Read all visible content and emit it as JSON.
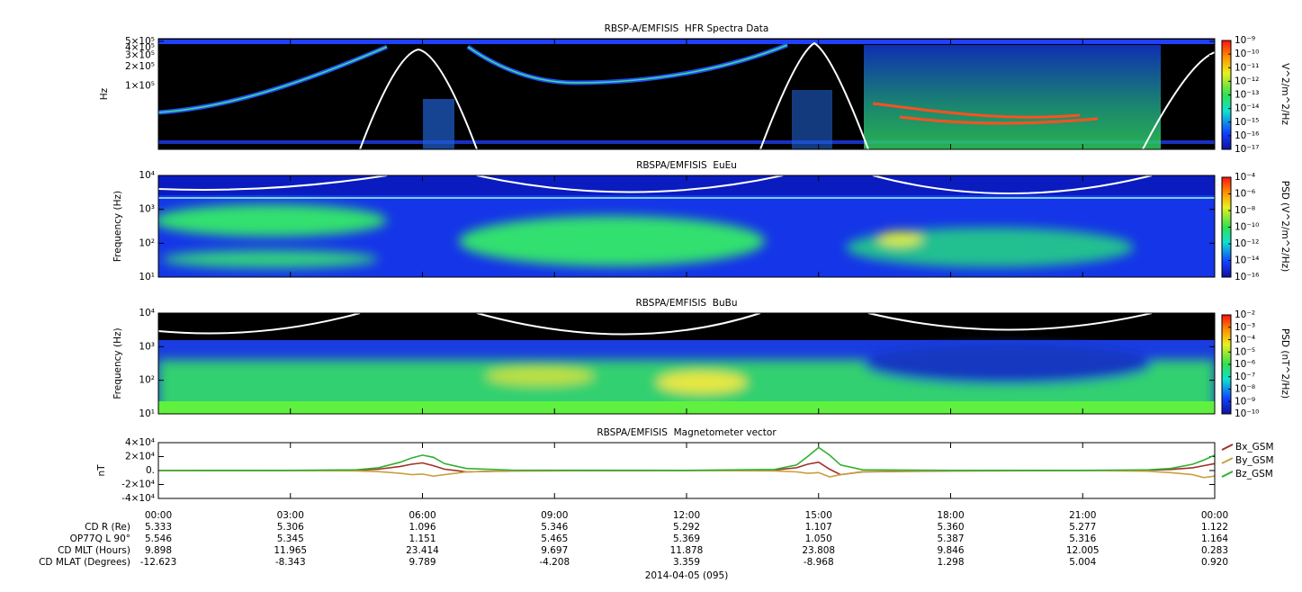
{
  "chart_data": [
    {
      "type": "spectrogram",
      "title": "RBSP-A/EMFISIS  HFR Spectra Data",
      "ylabel": "Hz",
      "ylog": true,
      "ylim": [
        10000,
        550000
      ],
      "yticks": [
        {
          "value": 500000,
          "label": "5×10⁵"
        },
        {
          "value": 400000,
          "label": "4×10⁵"
        },
        {
          "value": 300000,
          "label": "3×10⁵"
        },
        {
          "value": 200000,
          "label": "2×10⁵"
        },
        {
          "value": 100000,
          "label": "1×10⁵"
        }
      ],
      "colorbar_label": "V^2/m^2/Hz",
      "clim": [
        1e-17,
        1e-09
      ],
      "cticks": [
        {
          "value": 1e-09,
          "label": "10⁻⁹"
        },
        {
          "value": 1e-10,
          "label": "10⁻¹⁰"
        },
        {
          "value": 1e-11,
          "label": "10⁻¹¹"
        },
        {
          "value": 1e-12,
          "label": "10⁻¹²"
        },
        {
          "value": 1e-13,
          "label": "10⁻¹³"
        },
        {
          "value": 1e-14,
          "label": "10⁻¹⁴"
        },
        {
          "value": 1e-15,
          "label": "10⁻¹⁵"
        },
        {
          "value": 1e-16,
          "label": "10⁻¹⁶"
        },
        {
          "value": 1e-17,
          "label": "10⁻¹⁷"
        }
      ]
    },
    {
      "type": "spectrogram",
      "title": "RBSPA/EMFISIS  EuEu",
      "ylabel": "Frequency (Hz)",
      "ylog": true,
      "ylim": [
        10,
        10000
      ],
      "yticks": [
        {
          "value": 10000,
          "label": "10⁴"
        },
        {
          "value": 1000,
          "label": "10³"
        },
        {
          "value": 100,
          "label": "10²"
        },
        {
          "value": 10,
          "label": "10¹"
        }
      ],
      "colorbar_label": "PSD (V^2/m^2/Hz)",
      "clim": [
        1e-16,
        0.0001
      ],
      "cticks": [
        {
          "value": 0.0001,
          "label": "10⁻⁴"
        },
        {
          "value": 1e-06,
          "label": "10⁻⁶"
        },
        {
          "value": 1e-08,
          "label": "10⁻⁸"
        },
        {
          "value": 1e-10,
          "label": "10⁻¹⁰"
        },
        {
          "value": 1e-12,
          "label": "10⁻¹²"
        },
        {
          "value": 1e-14,
          "label": "10⁻¹⁴"
        },
        {
          "value": 1e-16,
          "label": "10⁻¹⁶"
        }
      ]
    },
    {
      "type": "spectrogram",
      "title": "RBSPA/EMFISIS  BuBu",
      "ylabel": "Frequency (Hz)",
      "ylog": true,
      "ylim": [
        10,
        10000
      ],
      "yticks": [
        {
          "value": 10000,
          "label": "10⁴"
        },
        {
          "value": 1000,
          "label": "10³"
        },
        {
          "value": 100,
          "label": "10²"
        },
        {
          "value": 10,
          "label": "10¹"
        }
      ],
      "colorbar_label": "PSD (nT^2/Hz)",
      "clim": [
        1e-10,
        0.01
      ],
      "cticks": [
        {
          "value": 0.01,
          "label": "10⁻²"
        },
        {
          "value": 0.001,
          "label": "10⁻³"
        },
        {
          "value": 0.0001,
          "label": "10⁻⁴"
        },
        {
          "value": 1e-05,
          "label": "10⁻⁵"
        },
        {
          "value": 1e-06,
          "label": "10⁻⁶"
        },
        {
          "value": 1e-07,
          "label": "10⁻⁷"
        },
        {
          "value": 1e-08,
          "label": "10⁻⁸"
        },
        {
          "value": 1e-09,
          "label": "10⁻⁹"
        },
        {
          "value": 1e-10,
          "label": "10⁻¹⁰"
        }
      ]
    },
    {
      "type": "line",
      "title": "RBSPA/EMFISIS  Magnetometer vector",
      "ylabel": "nT",
      "ylim": [
        -40000,
        40000
      ],
      "yticks": [
        {
          "value": 40000,
          "label": "4×10⁴"
        },
        {
          "value": 20000,
          "label": "2×10⁴"
        },
        {
          "value": 0,
          "label": "0."
        },
        {
          "value": -20000,
          "label": "-2×10⁴"
        },
        {
          "value": -40000,
          "label": "-4×10⁴"
        }
      ],
      "legend": "right",
      "xlim": [
        0,
        24
      ],
      "xticks": [
        {
          "value": 0,
          "label": "00:00"
        },
        {
          "value": 3,
          "label": "03:00"
        },
        {
          "value": 6,
          "label": "06:00"
        },
        {
          "value": 9,
          "label": "09:00"
        },
        {
          "value": 12,
          "label": "12:00"
        },
        {
          "value": 15,
          "label": "15:00"
        },
        {
          "value": 18,
          "label": "18:00"
        },
        {
          "value": 21,
          "label": "21:00"
        },
        {
          "value": 24,
          "label": "00:00"
        }
      ],
      "x": [
        0,
        3,
        4.5,
        5,
        5.5,
        5.75,
        6,
        6.25,
        6.5,
        7,
        8,
        12,
        14,
        14.5,
        14.75,
        15,
        15.25,
        15.5,
        16,
        18,
        21,
        22.5,
        23,
        23.5,
        23.75,
        24
      ],
      "series": [
        {
          "name": "Bx_GSM",
          "color": "#a03028",
          "values": [
            0,
            100,
            500,
            2000,
            6000,
            9000,
            11000,
            7000,
            2000,
            -2000,
            -500,
            100,
            800,
            4000,
            9000,
            12000,
            2000,
            -6000,
            -2000,
            -500,
            0,
            500,
            1500,
            4000,
            7000,
            10000
          ]
        },
        {
          "name": "By_GSM",
          "color": "#c8a040",
          "values": [
            0,
            -100,
            -500,
            -1500,
            -4000,
            -6000,
            -5000,
            -8000,
            -6000,
            -2000,
            -300,
            0,
            -500,
            -2000,
            -4000,
            -3000,
            -9000,
            -6000,
            -1500,
            -300,
            0,
            -1000,
            -3000,
            -6000,
            -10000,
            -8000
          ]
        },
        {
          "name": "Bz_GSM",
          "color": "#30b030",
          "values": [
            0,
            200,
            1000,
            4000,
            12000,
            18000,
            22000,
            19000,
            10000,
            3000,
            500,
            300,
            1500,
            8000,
            20000,
            33000,
            22000,
            8000,
            1000,
            300,
            300,
            1000,
            3000,
            9000,
            15000,
            22000
          ]
        }
      ],
      "ephemeris": [
        {
          "label": "CD R (Re)",
          "values": [
            "5.333",
            "5.306",
            "1.096",
            "5.346",
            "5.292",
            "1.107",
            "5.360",
            "5.277",
            "1.122"
          ]
        },
        {
          "label": "OP77Q L 90°",
          "values": [
            "5.546",
            "5.345",
            "1.151",
            "5.465",
            "5.369",
            "1.050",
            "5.387",
            "5.316",
            "1.164"
          ]
        },
        {
          "label": "CD MLT (Hours)",
          "values": [
            "9.898",
            "11.965",
            "23.414",
            "9.697",
            "11.878",
            "23.808",
            "9.846",
            "12.005",
            "0.283"
          ]
        },
        {
          "label": "CD MLAT (Degrees)",
          "values": [
            "-12.623",
            "-8.343",
            "9.789",
            "-4.208",
            "3.359",
            "-8.968",
            "1.298",
            "5.004",
            "0.920"
          ]
        }
      ],
      "date": "2014-04-05 (095)"
    }
  ]
}
